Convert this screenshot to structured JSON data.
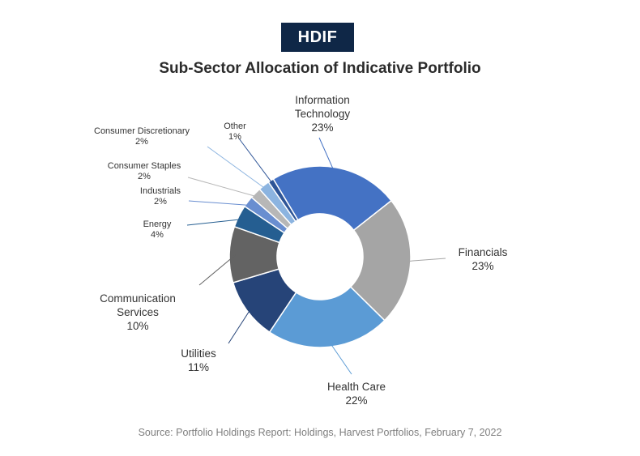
{
  "badge": "HDIF",
  "source": "Source: Portfolio Holdings Report: Holdings, Harvest Portfolios, February 7, 2022",
  "chart_data": {
    "type": "pie",
    "title": "Sub-Sector Allocation of Indicative Portfolio",
    "donut": true,
    "slices": [
      {
        "name": "Information Technology",
        "label_lines": [
          "Information",
          "Technology"
        ],
        "pct_label": "23%",
        "value": 23,
        "color": "#4472c4"
      },
      {
        "name": "Financials",
        "label_lines": [
          "Financials"
        ],
        "pct_label": "23%",
        "value": 23,
        "color": "#a5a5a5"
      },
      {
        "name": "Health Care",
        "label_lines": [
          "Health Care"
        ],
        "pct_label": "22%",
        "value": 22,
        "color": "#5b9bd5"
      },
      {
        "name": "Utilities",
        "label_lines": [
          "Utilities"
        ],
        "pct_label": "11%",
        "value": 11,
        "color": "#264478"
      },
      {
        "name": "Communication Services",
        "label_lines": [
          "Communication",
          "Services"
        ],
        "pct_label": "10%",
        "value": 10,
        "color": "#636363"
      },
      {
        "name": "Energy",
        "label_lines": [
          "Energy"
        ],
        "pct_label": "4%",
        "value": 4,
        "color": "#255e91"
      },
      {
        "name": "Industrials",
        "label_lines": [
          "Industrials"
        ],
        "pct_label": "2%",
        "value": 2,
        "color": "#698ed0"
      },
      {
        "name": "Consumer Staples",
        "label_lines": [
          "Consumer Staples"
        ],
        "pct_label": "2%",
        "value": 2,
        "color": "#b7b7b7"
      },
      {
        "name": "Consumer Discretionary",
        "label_lines": [
          "Consumer Discretionary"
        ],
        "pct_label": "2%",
        "value": 2,
        "color": "#8cb4e0"
      },
      {
        "name": "Other",
        "label_lines": [
          "Other"
        ],
        "pct_label": "1%",
        "value": 1,
        "color": "#2e5597"
      }
    ]
  }
}
